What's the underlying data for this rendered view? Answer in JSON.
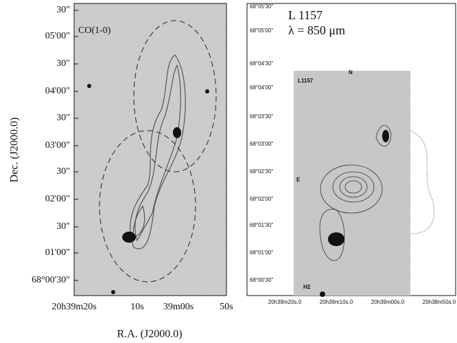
{
  "left_panel": {
    "label": "CO(1-0)",
    "y_axis_label": "Dec. (J2000.0)",
    "x_axis_label": "R.A. (J2000.0)",
    "y_ticks": [
      "30\"",
      "05'00\"",
      "30\"",
      "04'00\"",
      "30\"",
      "03'00\"",
      "30\"",
      "02'00\"",
      "30\"",
      "01'00\"",
      "68°00'30\""
    ],
    "x_ticks": [
      "20h39m20s",
      "10s",
      "39m00s",
      "50s"
    ]
  },
  "right_panel": {
    "title": "L 1157",
    "subtitle": "λ = 850 μm",
    "inner_labels": [
      "L1157",
      "N",
      "E",
      "H2"
    ],
    "y_ticks": [
      "68°05'30\"",
      "68°05'00\"",
      "68°04'30\"",
      "68°04'00\"",
      "68°03'30\"",
      "68°03'00\"",
      "68°02'30\"",
      "68°02'00\"",
      "68°01'30\"",
      "68°01'00\"",
      "68°00'30\""
    ],
    "x_ticks": [
      "20h39m20s.0",
      "20h39m10s.0",
      "20h39m00s.0",
      "20h38m50s.0"
    ]
  }
}
